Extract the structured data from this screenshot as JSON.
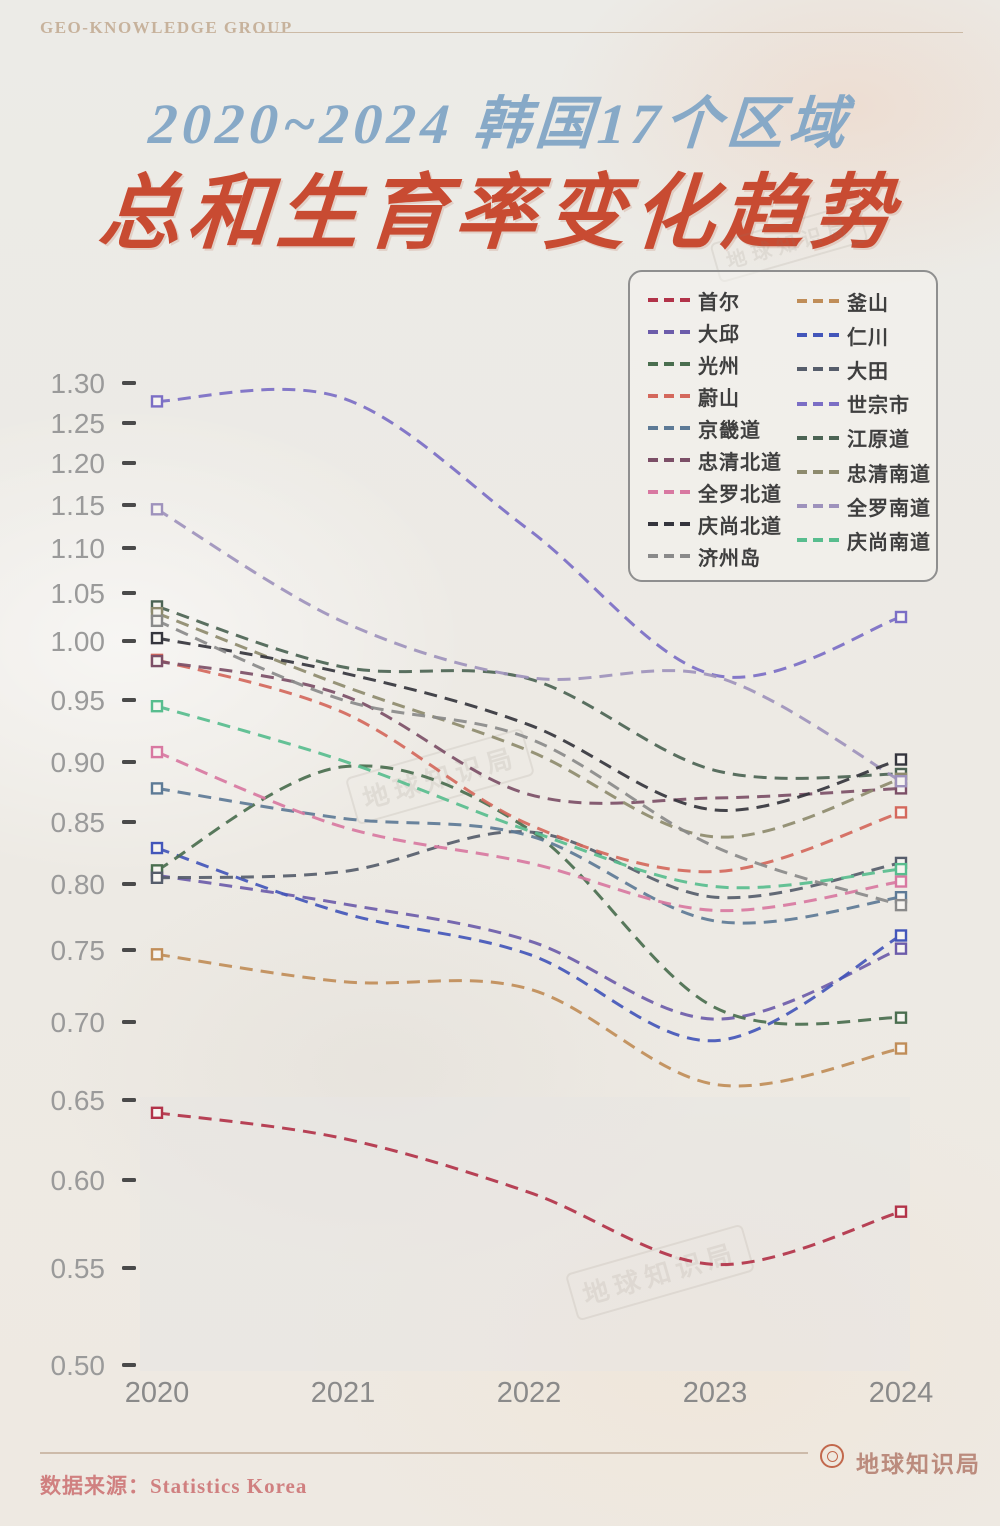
{
  "header": {
    "brand": "GEO-KNOWLEDGE GROUP"
  },
  "title": {
    "line1": "2020~2024 韩国17个区域",
    "line2": "总和生育率变化趋势"
  },
  "watermark": {
    "text": "地球知识局"
  },
  "footer": {
    "source": "数据来源：Statistics Korea",
    "logo_text": "地球知识局"
  },
  "colors": {
    "title_blue": "#87a9c7",
    "title_red": "#c84b32",
    "background": "#edeae5",
    "axis_label_gray": "#9a9a9a",
    "tick_mark_dark": "#4a4a4a",
    "source_pink": "#d08080"
  },
  "chart_data": {
    "type": "line",
    "title": "2020~2024 韩国17个区域 总和生育率变化趋势",
    "xlabel": "",
    "ylabel": "",
    "x": [
      2020,
      2021,
      2022,
      2023,
      2024
    ],
    "x_labels": [
      "2020",
      "2021",
      "2022",
      "2023",
      "2024"
    ],
    "ylim": [
      0.5,
      1.3
    ],
    "y_ticks": [
      1.3,
      1.25,
      1.2,
      1.15,
      1.1,
      1.05,
      1.0,
      0.95,
      0.9,
      0.85,
      0.8,
      0.75,
      0.7,
      0.65,
      0.6,
      0.55,
      0.5
    ],
    "y_tick_labels": [
      "1.30",
      "1.25",
      "1.20",
      "1.15",
      "1.10",
      "1.05",
      "1.00",
      "0.95",
      "0.90",
      "0.85",
      "0.80",
      "0.75",
      "0.70",
      "0.65",
      "0.60",
      "0.55",
      "0.50"
    ],
    "grid": false,
    "line_style": "dashed",
    "marker": "open-square-endpoints-only",
    "legend_position": "top-right",
    "series": [
      {
        "id": "seoul",
        "name": "首尔",
        "color": "#b23349",
        "values": [
          0.642,
          0.626,
          0.593,
          0.552,
          0.582
        ]
      },
      {
        "id": "busan",
        "name": "釜山",
        "color": "#c08d58",
        "values": [
          0.747,
          0.728,
          0.723,
          0.66,
          0.683
        ]
      },
      {
        "id": "daegu",
        "name": "大邱",
        "color": "#6c5caa",
        "values": [
          0.807,
          0.785,
          0.757,
          0.702,
          0.751
        ]
      },
      {
        "id": "incheon",
        "name": "仁川",
        "color": "#4356ba",
        "values": [
          0.829,
          0.778,
          0.747,
          0.688,
          0.761
        ]
      },
      {
        "id": "gwangju",
        "name": "光州",
        "color": "#4a6e4f",
        "values": [
          0.811,
          0.896,
          0.844,
          0.71,
          0.703
        ]
      },
      {
        "id": "daejeon",
        "name": "大田",
        "color": "#565d6b",
        "values": [
          0.805,
          0.81,
          0.842,
          0.79,
          0.817
        ]
      },
      {
        "id": "ulsan",
        "name": "蔚山",
        "color": "#d4685c",
        "values": [
          0.984,
          0.94,
          0.848,
          0.81,
          0.858
        ]
      },
      {
        "id": "sejong",
        "name": "世宗市",
        "color": "#7b6ec5",
        "values": [
          1.277,
          1.281,
          1.121,
          0.971,
          1.025
        ]
      },
      {
        "id": "gyeonggi",
        "name": "京畿道",
        "color": "#5d7a96",
        "values": [
          0.878,
          0.853,
          0.839,
          0.772,
          0.79
        ]
      },
      {
        "id": "gangwon",
        "name": "江原道",
        "color": "#4c6454",
        "values": [
          1.036,
          0.978,
          0.968,
          0.893,
          0.89
        ]
      },
      {
        "id": "chungbuk",
        "name": "忠清北道",
        "color": "#7c4f67",
        "values": [
          0.983,
          0.954,
          0.873,
          0.87,
          0.878
        ]
      },
      {
        "id": "chungnam",
        "name": "忠清南道",
        "color": "#8e8b6e",
        "values": [
          1.029,
          0.962,
          0.909,
          0.838,
          0.886
        ]
      },
      {
        "id": "jeonbuk",
        "name": "全罗北道",
        "color": "#d878a1",
        "values": [
          0.908,
          0.846,
          0.817,
          0.78,
          0.802
        ]
      },
      {
        "id": "jeonnam",
        "name": "全罗南道",
        "color": "#9e92bc",
        "values": [
          1.145,
          1.02,
          0.969,
          0.97,
          0.884
        ]
      },
      {
        "id": "gyeongbuk",
        "name": "庆尚北道",
        "color": "#35353d",
        "values": [
          1.003,
          0.973,
          0.93,
          0.86,
          0.902
        ]
      },
      {
        "id": "gyeongnam",
        "name": "庆尚南道",
        "color": "#58bd8e",
        "values": [
          0.945,
          0.901,
          0.843,
          0.798,
          0.812
        ]
      },
      {
        "id": "jeju",
        "name": "济州岛",
        "color": "#8a8a8a",
        "values": [
          1.021,
          0.95,
          0.919,
          0.83,
          0.784
        ]
      }
    ],
    "legend_columns": [
      [
        "首尔",
        "大邱",
        "光州",
        "蔚山",
        "京畿道",
        "忠清北道",
        "全罗北道",
        "庆尚北道",
        "济州岛"
      ],
      [
        "釜山",
        "仁川",
        "大田",
        "世宗市",
        "江原道",
        "忠清南道",
        "全罗南道",
        "庆尚南道"
      ]
    ]
  }
}
